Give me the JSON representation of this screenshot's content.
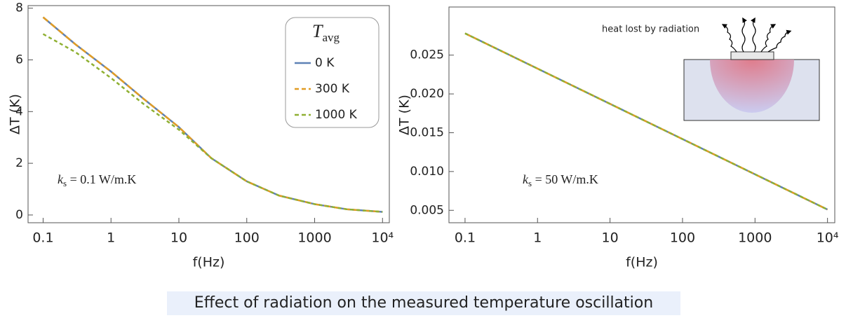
{
  "chart_data": [
    {
      "type": "line",
      "x_label": "f(Hz)",
      "y_label": "ΔT (K)",
      "log_x": true,
      "x": [
        0.1,
        0.3,
        1,
        3,
        10,
        30,
        100,
        300,
        1000,
        3000,
        10000
      ],
      "xlim": [
        0.06,
        12600
      ],
      "xticks": [
        0.1,
        1,
        10,
        100,
        1000,
        {
          "value": 10000,
          "label": "10⁴"
        }
      ],
      "ylim": [
        -0.3,
        8.1
      ],
      "yticks": [
        0,
        2,
        4,
        6,
        8
      ],
      "legend_title": [
        "T",
        "avg"
      ],
      "legend": "upper right",
      "annotation": [
        "k",
        "s",
        " = 0.1 W/m.K"
      ],
      "series": [
        {
          "name": "0 K",
          "color": "#5e81b5",
          "dashed": false,
          "values": [
            7.65,
            6.6,
            5.55,
            4.5,
            3.4,
            2.2,
            1.3,
            0.75,
            0.42,
            0.22,
            0.12
          ]
        },
        {
          "name": "300 K",
          "color": "#e19c24",
          "dashed": true,
          "values": [
            7.65,
            6.6,
            5.55,
            4.5,
            3.4,
            2.2,
            1.3,
            0.75,
            0.42,
            0.22,
            0.12
          ]
        },
        {
          "name": "1000 K",
          "color": "#8fb032",
          "dashed": true,
          "values": [
            7.0,
            6.3,
            5.3,
            4.3,
            3.3,
            2.2,
            1.3,
            0.75,
            0.42,
            0.22,
            0.12
          ]
        }
      ]
    },
    {
      "type": "line",
      "x_label": "f(Hz)",
      "y_label": "ΔT (K)",
      "log_x": true,
      "x": [
        0.1,
        10000
      ],
      "xlim": [
        0.06,
        12600
      ],
      "xticks": [
        0.1,
        1,
        10,
        100,
        1000,
        {
          "value": 10000,
          "label": "10⁴"
        }
      ],
      "ylim": [
        0.0034,
        0.0312
      ],
      "yticks": [
        0.005,
        {
          "value": 0.01,
          "label": "0.010"
        },
        0.015,
        {
          "value": 0.02,
          "label": "0.020"
        },
        0.025
      ],
      "annotation": [
        "k",
        "s",
        " = 50 W/m.K"
      ],
      "inset_label": "heat lost by radiation",
      "series": [
        {
          "color": "#5e81b5",
          "dashed": false,
          "values": [
            0.0278,
            0.0051
          ]
        },
        {
          "color": "#e19c24",
          "dashed": true,
          "values": [
            0.0278,
            0.0051
          ]
        },
        {
          "color": "#8fb032",
          "dashed": true,
          "values": [
            0.0278,
            0.0051
          ]
        }
      ]
    }
  ],
  "caption": "Effect of radiation on the measured temperature oscillation"
}
